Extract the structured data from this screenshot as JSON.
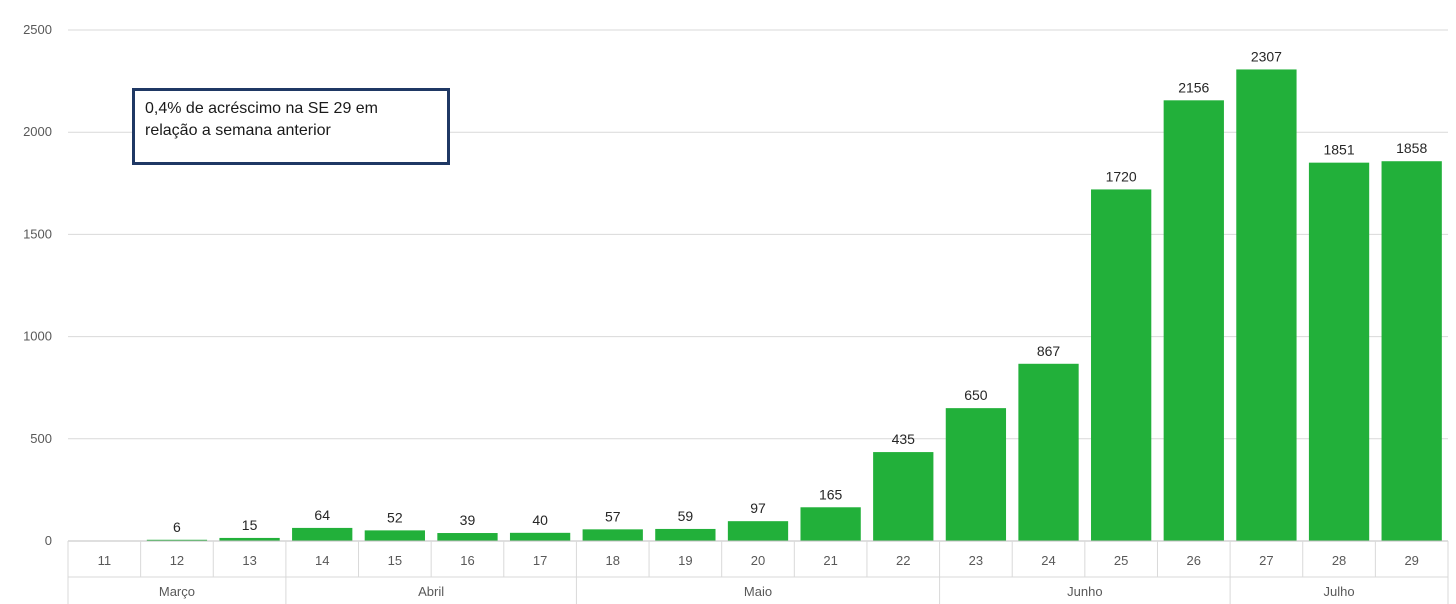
{
  "chart_data": {
    "type": "bar",
    "categories": [
      "11",
      "12",
      "13",
      "14",
      "15",
      "16",
      "17",
      "18",
      "19",
      "20",
      "21",
      "22",
      "23",
      "24",
      "25",
      "26",
      "27",
      "28",
      "29"
    ],
    "values": [
      null,
      6,
      15,
      64,
      52,
      39,
      40,
      57,
      59,
      97,
      165,
      435,
      650,
      867,
      1720,
      2156,
      2307,
      1851,
      1858
    ],
    "data_labels": [
      "",
      "6",
      "15",
      "64",
      "52",
      "39",
      "40",
      "57",
      "59",
      "97",
      "165",
      "435",
      "650",
      "867",
      "1720",
      "2156",
      "2307",
      "1851",
      "1858"
    ],
    "month_groups": [
      {
        "label": "Março",
        "from": 0,
        "to": 2
      },
      {
        "label": "Abril",
        "from": 3,
        "to": 6
      },
      {
        "label": "Maio",
        "from": 7,
        "to": 11
      },
      {
        "label": "Junho",
        "from": 12,
        "to": 15
      },
      {
        "label": "Julho",
        "from": 16,
        "to": 18
      }
    ],
    "ylim": [
      0,
      2500
    ],
    "yticks": [
      "0",
      "500",
      "1000",
      "1500",
      "2000",
      "2500"
    ],
    "grid": true,
    "bar_color": "#22b03a",
    "annotation": [
      "0,4% de acréscimo na SE 29 em",
      "relação a semana anterior"
    ]
  }
}
